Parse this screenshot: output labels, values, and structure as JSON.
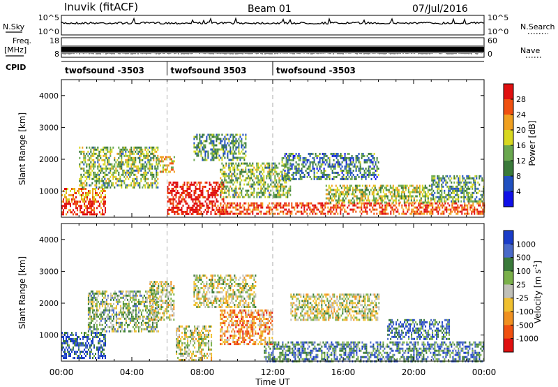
{
  "header": {
    "station": "Inuvik (fitACF)",
    "beam": "Beam 01",
    "date": "07/Jul/2016"
  },
  "top_panels": {
    "nsky_label": "N.Sky",
    "nsky_ticks": [
      "10^5",
      "10^0"
    ],
    "nsearch_label": "N.Search",
    "nsearch_ticks": [
      "10^5",
      "10^0"
    ],
    "freq_label_1": "Freq.",
    "freq_label_2": "[MHz]",
    "freq_ticks": [
      "18",
      "8"
    ],
    "nave_label": "Nave",
    "nave_ticks": [
      "60",
      "0"
    ],
    "cpid_label": "CPID",
    "cpid_segments": [
      {
        "label": "twofsound -3503",
        "start_hour": 0
      },
      {
        "label": "twofsound 3503",
        "start_hour": 6
      },
      {
        "label": "twofsound -3503",
        "start_hour": 12
      }
    ]
  },
  "chart_data": [
    {
      "type": "heatmap",
      "name": "power",
      "ylabel": "Slant Range [km]",
      "yticks": [
        "1000",
        "2000",
        "3000",
        "4000"
      ],
      "ylim": [
        180,
        4500
      ],
      "xlim_hours": [
        0,
        24
      ],
      "colorbar_label": "Power [dB]",
      "colorbar_ticks": [
        "4",
        "8",
        "12",
        "16",
        "20",
        "24",
        "28"
      ],
      "colorbar_colors": [
        "#1010e8",
        "#2050c0",
        "#3a7a3a",
        "#6aa84f",
        "#d8d820",
        "#f0a020",
        "#f05010",
        "#e01010"
      ],
      "echo_regions": [
        {
          "t0": 0.0,
          "t1": 2.5,
          "r0": 300,
          "r1": 700,
          "level": 0.9
        },
        {
          "t0": 0.0,
          "t1": 2.5,
          "r0": 700,
          "r1": 1100,
          "level": 0.75
        },
        {
          "t0": 1.0,
          "t1": 5.5,
          "r0": 1100,
          "r1": 2400,
          "level": 0.45
        },
        {
          "t0": 5.5,
          "t1": 6.4,
          "r0": 1600,
          "r1": 2100,
          "level": 0.65
        },
        {
          "t0": 6.0,
          "t1": 9.2,
          "r0": 300,
          "r1": 1300,
          "level": 0.95
        },
        {
          "t0": 7.5,
          "t1": 10.5,
          "r0": 2000,
          "r1": 2800,
          "level": 0.35
        },
        {
          "t0": 9.0,
          "t1": 13.0,
          "r0": 800,
          "r1": 1900,
          "level": 0.45
        },
        {
          "t0": 9.0,
          "t1": 24.0,
          "r0": 300,
          "r1": 650,
          "level": 0.85
        },
        {
          "t0": 12.5,
          "t1": 18.0,
          "r0": 1400,
          "r1": 2200,
          "level": 0.3
        },
        {
          "t0": 15.0,
          "t1": 21.0,
          "r0": 650,
          "r1": 1200,
          "level": 0.5
        },
        {
          "t0": 21.0,
          "t1": 24.0,
          "r0": 700,
          "r1": 1500,
          "level": 0.4
        }
      ]
    },
    {
      "type": "heatmap",
      "name": "velocity",
      "ylabel": "Slant Range [km]",
      "yticks": [
        "1000",
        "2000",
        "3000",
        "4000"
      ],
      "ylim": [
        180,
        4500
      ],
      "xlim_hours": [
        0,
        24
      ],
      "colorbar_label": "Velocity [m s^-1]",
      "colorbar_ticks": [
        "1000",
        "500",
        "100",
        "25",
        "-25",
        "-100",
        "-500",
        "-1000"
      ],
      "colorbar_colors": [
        "#1a3cc8",
        "#4a6ac8",
        "#3a7a3a",
        "#7ab04a",
        "#c0c0b8",
        "#f0c030",
        "#f09020",
        "#f05010",
        "#e01010"
      ],
      "echo_regions": [
        {
          "t0": 0.0,
          "t1": 2.5,
          "r0": 300,
          "r1": 1100,
          "level": 0.85
        },
        {
          "t0": 1.5,
          "t1": 5.5,
          "r0": 1100,
          "r1": 2400,
          "level": 0.6
        },
        {
          "t0": 5.0,
          "t1": 6.4,
          "r0": 1500,
          "r1": 2700,
          "level": 0.5
        },
        {
          "t0": 6.5,
          "t1": 8.5,
          "r0": 200,
          "r1": 1300,
          "level": 0.5
        },
        {
          "t0": 7.5,
          "t1": 11.0,
          "r0": 1900,
          "r1": 2900,
          "level": 0.5
        },
        {
          "t0": 9.0,
          "t1": 12.0,
          "r0": 700,
          "r1": 1800,
          "level": 0.3
        },
        {
          "t0": 11.5,
          "t1": 24.0,
          "r0": 200,
          "r1": 800,
          "level": 0.75
        },
        {
          "t0": 13.0,
          "t1": 18.0,
          "r0": 1500,
          "r1": 2300,
          "level": 0.5
        },
        {
          "t0": 18.5,
          "t1": 22.0,
          "r0": 900,
          "r1": 1500,
          "level": 0.8
        }
      ]
    }
  ],
  "x_axis": {
    "ticks": [
      "00:00",
      "04:00",
      "08:00",
      "12:00",
      "16:00",
      "20:00",
      "00:00"
    ],
    "label": "Time UT"
  }
}
